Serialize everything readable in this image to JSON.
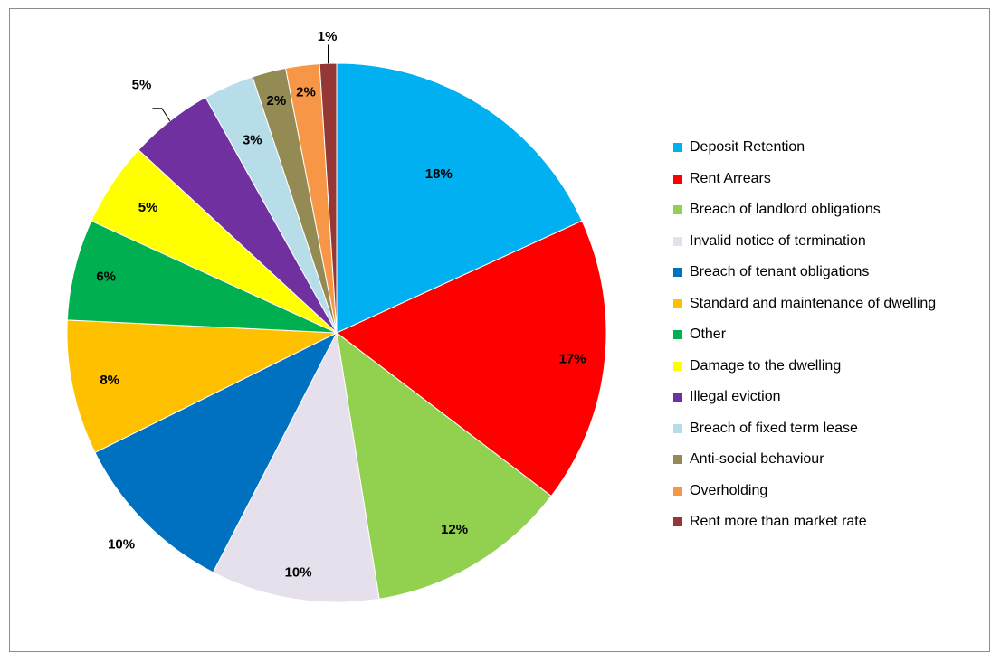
{
  "chart_data": {
    "type": "pie",
    "title": "",
    "legend_position": "right",
    "slices": [
      {
        "label": "Deposit Retention",
        "value": 18,
        "value_label": "18%",
        "color": "#00b0f0"
      },
      {
        "label": "Rent Arrears",
        "value": 17,
        "value_label": "17%",
        "color": "#ff0000"
      },
      {
        "label": "Breach of landlord obligations",
        "value": 12,
        "value_label": "12%",
        "color": "#92d050"
      },
      {
        "label": "Invalid notice of termination",
        "value": 10,
        "value_label": "10%",
        "color": "#e6e0ec"
      },
      {
        "label": "Breach of tenant obligations",
        "value": 10,
        "value_label": "10%",
        "color": "#0070c0"
      },
      {
        "label": "Standard and maintenance of dwelling",
        "value": 8,
        "value_label": "8%",
        "color": "#ffc000"
      },
      {
        "label": "Other",
        "value": 6,
        "value_label": "6%",
        "color": "#00b050"
      },
      {
        "label": "Damage to the dwelling",
        "value": 5,
        "value_label": "5%",
        "color": "#ffff00"
      },
      {
        "label": "Illegal eviction",
        "value": 5,
        "value_label": "5%",
        "color": "#7030a0"
      },
      {
        "label": "Breach of fixed term lease",
        "value": 3,
        "value_label": "3%",
        "color": "#b7dde8"
      },
      {
        "label": "Anti-social behaviour",
        "value": 2,
        "value_label": "2%",
        "color": "#948a54"
      },
      {
        "label": "Overholding",
        "value": 2,
        "value_label": "2%",
        "color": "#f79646"
      },
      {
        "label": "Rent more than market rate",
        "value": 1,
        "value_label": "1%",
        "color": "#953735"
      }
    ]
  }
}
